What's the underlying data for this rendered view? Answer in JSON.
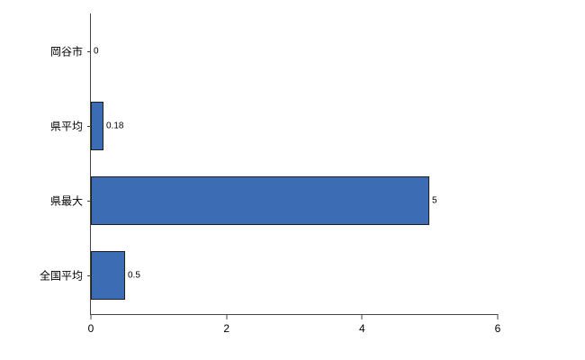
{
  "chart_data": {
    "type": "bar",
    "orientation": "horizontal",
    "title": "",
    "xlabel": "",
    "ylabel": "",
    "categories": [
      "岡谷市",
      "県平均",
      "県最大",
      "全国平均"
    ],
    "values": [
      0,
      0.18,
      5,
      0.5
    ],
    "value_labels": [
      "0",
      "0.18",
      "5",
      "0.5"
    ],
    "xlim": [
      0,
      6
    ],
    "x_ticks": [
      "0",
      "2",
      "4",
      "6"
    ],
    "x_tick_values": [
      0,
      2,
      4,
      6
    ],
    "grid": false,
    "legend_position": "none",
    "bar_color": "#3c6cb4",
    "bar_border_color": "#1f1f1f",
    "axis_color": "#444444",
    "text_color": "#000000"
  }
}
